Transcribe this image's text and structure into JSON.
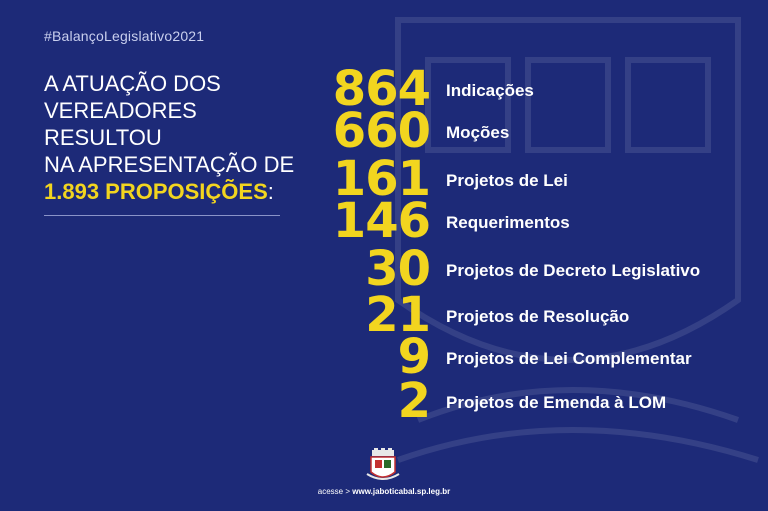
{
  "hashtag": "#BalançoLegislativo2021",
  "headline": {
    "line1": "A ATUAÇÃO DOS",
    "line2": "VEREADORES",
    "line3": "RESULTOU",
    "line4": "NA APRESENTAÇÃO DE",
    "highlight": "1.893 PROPOSIÇÕES",
    "suffix": ":"
  },
  "stats": [
    {
      "number": "864",
      "label": "Indicações"
    },
    {
      "number": "660",
      "label": "Moções"
    },
    {
      "number": "161",
      "label": "Projetos de Lei"
    },
    {
      "number": "146",
      "label": "Requerimentos"
    },
    {
      "number": "30",
      "label": "Projetos de Decreto Legislativo"
    },
    {
      "number": "21",
      "label": "Projetos de Resolução"
    },
    {
      "number": "9",
      "label": "Projetos de Lei Complementar"
    },
    {
      "number": "2",
      "label": "Projetos de Emenda à LOM"
    }
  ],
  "footer": {
    "prefix": "acesse >",
    "url": "www.jaboticabal.sp.leg.br"
  },
  "colors": {
    "background": "#1d2a78",
    "accent": "#f2d51f",
    "text": "#ffffff"
  },
  "icons": [
    "city-crest-watermark",
    "city-crest-logo"
  ]
}
